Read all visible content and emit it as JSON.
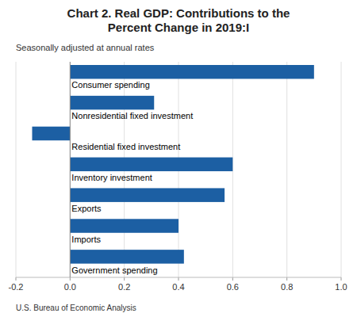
{
  "chart_data": {
    "type": "bar",
    "orientation": "horizontal",
    "title": "Chart 2. Real GDP: Contributions to the\nPercent Change in 2019:I",
    "subtitle": "Seasonally adjusted at annual rates",
    "annotations": [
      "U.S. Bureau of Economic Analysis"
    ],
    "categories": [
      "Consumer spending",
      "Nonresidential fixed investment",
      "Residential fixed investment",
      "Inventory investment",
      "Exports",
      "Imports",
      "Government spending"
    ],
    "values": [
      0.9,
      0.31,
      -0.14,
      0.6,
      0.57,
      0.4,
      0.42
    ],
    "color": "#1C5FA3",
    "xlim": [
      -0.2,
      1.0
    ],
    "xticks": [
      -0.2,
      {
        "value": 0,
        "label": "0.0"
      },
      0.2,
      0.4,
      0.6,
      0.8,
      {
        "value": 1,
        "label": "1.0"
      }
    ],
    "grid": true
  }
}
